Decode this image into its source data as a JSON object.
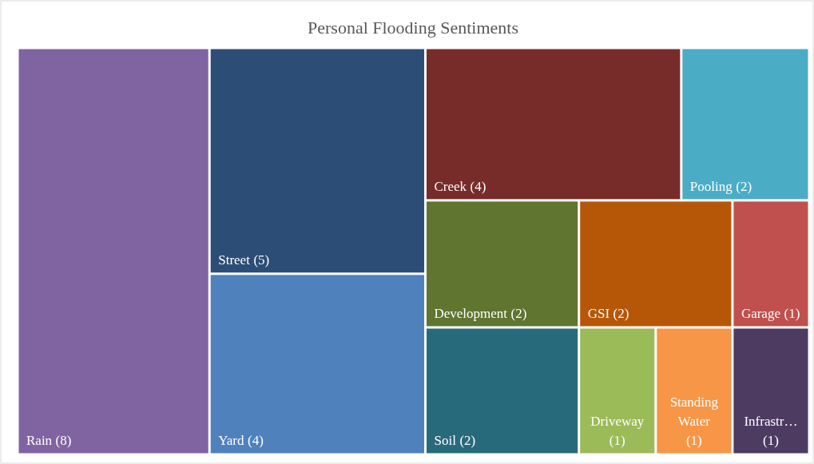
{
  "chart_data": {
    "type": "other",
    "title": "Personal Flooding Sentiments",
    "categories": [
      "Rain",
      "Street",
      "Yard",
      "Creek",
      "Pooling",
      "Development",
      "GSI",
      "Garage",
      "Soil",
      "Driveway",
      "Standing Water",
      "Infrastr…"
    ],
    "values": [
      8,
      5,
      4,
      4,
      2,
      2,
      2,
      1,
      2,
      1,
      1,
      1
    ],
    "value_labels": [
      "(8)",
      "(5)",
      "(4)",
      "(4)",
      "(2)",
      "(2)",
      "(2)",
      "(1)",
      "(2)",
      "(1)",
      "(1)",
      "(1)"
    ],
    "colors": [
      "#8064a2",
      "#2c4d75",
      "#4f81bd",
      "#772c2a",
      "#4bacc6",
      "#5f7530",
      "#b65708",
      "#c0504d",
      "#276a7c",
      "#9bbb59",
      "#f79646",
      "#4d3b62"
    ]
  }
}
